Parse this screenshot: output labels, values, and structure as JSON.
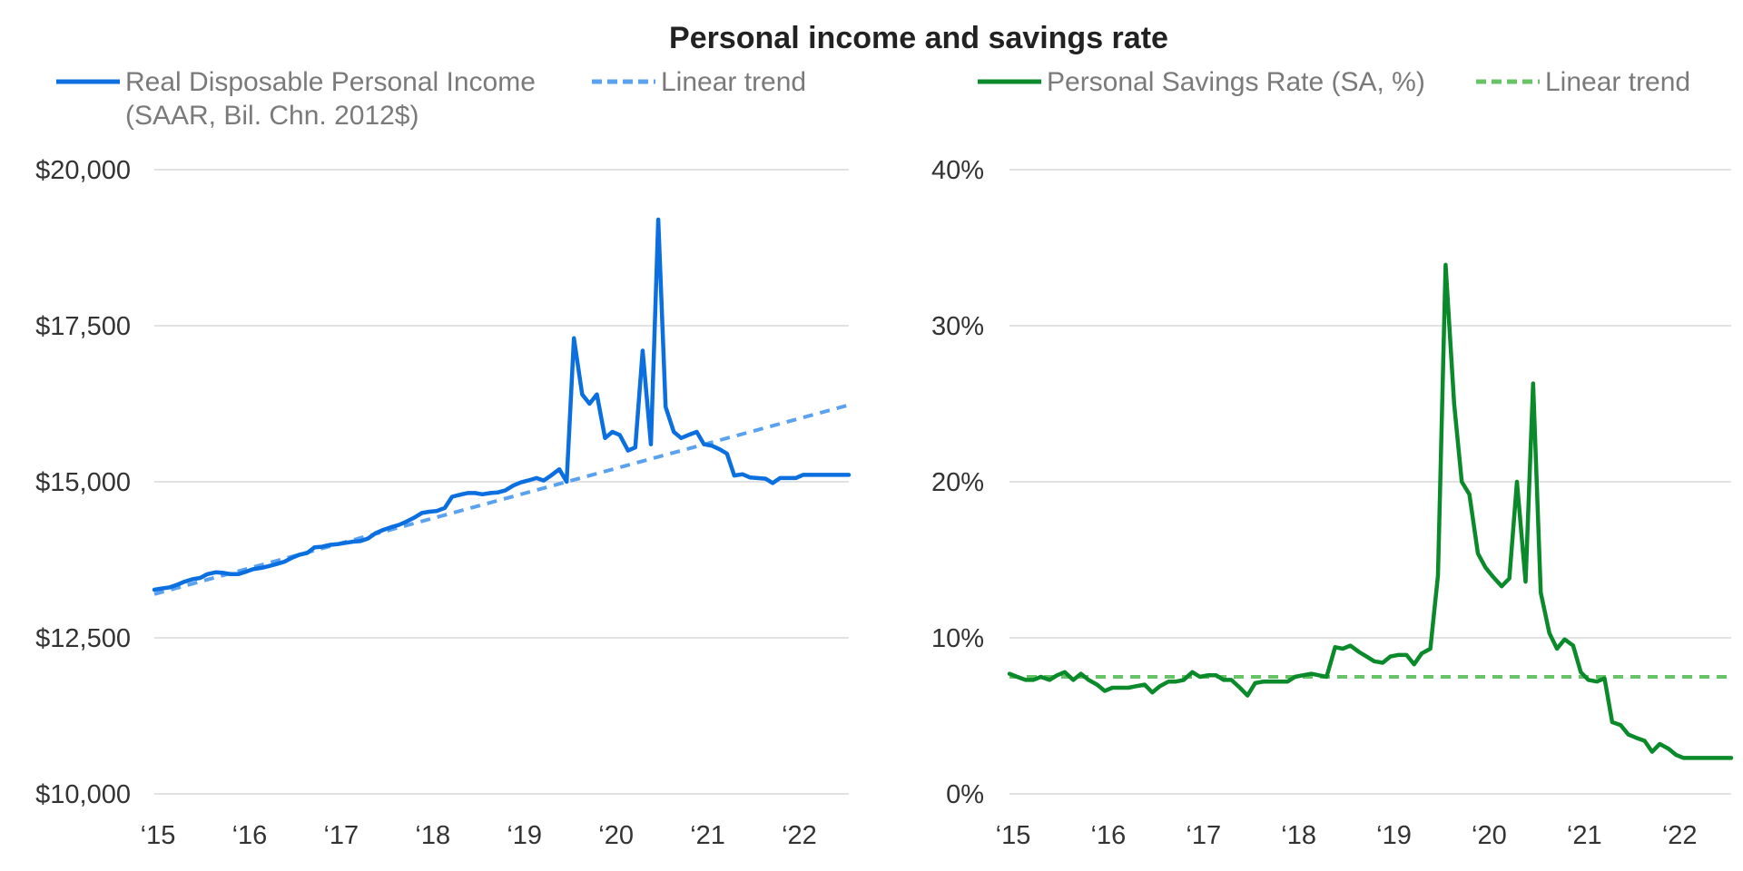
{
  "title": "Personal income and savings rate",
  "colors": {
    "income": "#0b6fe0",
    "income_trend": "#5aa2f0",
    "savings": "#0a8a2a",
    "savings_trend": "#66c466",
    "grid": "#d9d9d9",
    "text": "#333333",
    "legend_text": "#7a7a7a"
  },
  "chart_data": [
    {
      "type": "line",
      "legend": [
        {
          "label_lines": [
            "Real Disposable Personal Income",
            "(SAAR, Bil. Chn. 2012$)"
          ],
          "style": "solid",
          "color": "#0b6fe0"
        },
        {
          "label_lines": [
            "Linear trend"
          ],
          "style": "dashed",
          "color": "#5aa2f0"
        }
      ],
      "x_tick_labels": [
        "‘15",
        "‘16",
        "‘17",
        "‘18",
        "‘19",
        "‘20",
        "‘21",
        "‘22"
      ],
      "xlim": [
        2015.0,
        2022.58
      ],
      "ylim": [
        10000,
        20000
      ],
      "y_ticks": [
        10000,
        12500,
        15000,
        17500,
        20000
      ],
      "y_tick_labels": [
        "$10,000",
        "$12,500",
        "$15,000",
        "$17,500",
        "$20,000"
      ],
      "series": [
        {
          "name": "Real Disposable Personal Income (SAAR, Bil. Chn. 2012$)",
          "style": "solid",
          "x": [
            2015.0,
            2015.08,
            2015.17,
            2015.25,
            2015.33,
            2015.42,
            2015.5,
            2015.58,
            2015.67,
            2015.75,
            2015.83,
            2015.92,
            2016.0,
            2016.08,
            2016.17,
            2016.25,
            2016.33,
            2016.42,
            2016.5,
            2016.58,
            2016.67,
            2016.75,
            2016.83,
            2016.92,
            2017.0,
            2017.08,
            2017.17,
            2017.25,
            2017.33,
            2017.42,
            2017.5,
            2017.58,
            2017.67,
            2017.75,
            2017.83,
            2017.92,
            2018.0,
            2018.08,
            2018.17,
            2018.25,
            2018.33,
            2018.42,
            2018.5,
            2018.58,
            2018.67,
            2018.75,
            2018.83,
            2018.92,
            2019.0,
            2019.08,
            2019.17,
            2019.25,
            2019.33,
            2019.42,
            2019.5,
            2019.58,
            2019.67,
            2019.75,
            2019.83,
            2019.92,
            2020.0,
            2020.08,
            2020.17,
            2020.25,
            2020.33,
            2020.42,
            2020.5,
            2020.58,
            2020.67,
            2020.75,
            2020.83,
            2020.92,
            2021.0,
            2021.08,
            2021.17,
            2021.25,
            2021.33,
            2021.42,
            2021.5,
            2021.58,
            2021.67,
            2021.75,
            2021.83,
            2021.92,
            2022.0,
            2022.08,
            2022.17,
            2022.25,
            2022.33,
            2022.42,
            2022.5,
            2022.58
          ],
          "values": [
            13270,
            13290,
            13310,
            13350,
            13400,
            13440,
            13460,
            13520,
            13550,
            13540,
            13520,
            13520,
            13560,
            13600,
            13620,
            13650,
            13680,
            13720,
            13780,
            13830,
            13860,
            13950,
            13960,
            13990,
            14000,
            14020,
            14040,
            14050,
            14090,
            14180,
            14230,
            14270,
            14310,
            14360,
            14420,
            14500,
            14520,
            14530,
            14580,
            14760,
            14790,
            14820,
            14820,
            14800,
            14820,
            14830,
            14860,
            14940,
            14990,
            15020,
            15060,
            15020,
            15100,
            15200,
            15000,
            17300,
            16400,
            16250,
            16400,
            15700,
            15800,
            15750,
            15500,
            15550,
            17100,
            15600,
            19200,
            16200,
            15800,
            15700,
            15750,
            15800,
            15600,
            15580,
            15520,
            15450,
            15100,
            15120,
            15070,
            15060,
            15050,
            14980,
            15060,
            15060,
            15060,
            15110,
            15110,
            15110,
            15110,
            15110,
            15110,
            15110
          ]
        },
        {
          "name": "Linear trend",
          "style": "dashed",
          "x": [
            2015.0,
            2022.58
          ],
          "values": [
            13200,
            16230
          ]
        }
      ]
    },
    {
      "type": "line",
      "legend": [
        {
          "label_lines": [
            "Personal Savings Rate (SA, %)"
          ],
          "style": "solid",
          "color": "#0a8a2a"
        },
        {
          "label_lines": [
            "Linear trend"
          ],
          "style": "dashed",
          "color": "#66c466"
        }
      ],
      "x_tick_labels": [
        "‘15",
        "‘16",
        "‘17",
        "‘18",
        "‘19",
        "‘20",
        "‘21",
        "‘22"
      ],
      "xlim": [
        2015.0,
        2022.58
      ],
      "ylim": [
        0,
        40
      ],
      "y_ticks": [
        0,
        10,
        20,
        30,
        40
      ],
      "y_tick_labels": [
        "0%",
        "10%",
        "20%",
        "30%",
        "40%"
      ],
      "series": [
        {
          "name": "Personal Savings Rate (SA, %)",
          "style": "solid",
          "x": [
            2015.0,
            2015.08,
            2015.17,
            2015.25,
            2015.33,
            2015.42,
            2015.5,
            2015.58,
            2015.67,
            2015.75,
            2015.83,
            2015.92,
            2016.0,
            2016.08,
            2016.17,
            2016.25,
            2016.33,
            2016.42,
            2016.5,
            2016.58,
            2016.67,
            2016.75,
            2016.83,
            2016.92,
            2017.0,
            2017.08,
            2017.17,
            2017.25,
            2017.33,
            2017.42,
            2017.5,
            2017.58,
            2017.67,
            2017.75,
            2017.83,
            2017.92,
            2018.0,
            2018.08,
            2018.17,
            2018.25,
            2018.33,
            2018.42,
            2018.5,
            2018.58,
            2018.67,
            2018.75,
            2018.83,
            2018.92,
            2019.0,
            2019.08,
            2019.17,
            2019.25,
            2019.33,
            2019.42,
            2019.5,
            2019.58,
            2019.67,
            2019.75,
            2019.83,
            2019.92,
            2020.0,
            2020.08,
            2020.17,
            2020.25,
            2020.33,
            2020.42,
            2020.5,
            2020.58,
            2020.67,
            2020.75,
            2020.83,
            2020.92,
            2021.0,
            2021.08,
            2021.17,
            2021.25,
            2021.33,
            2021.42,
            2021.5,
            2021.58,
            2021.67,
            2021.75,
            2021.83,
            2021.92,
            2022.0,
            2022.08,
            2022.17,
            2022.25,
            2022.33,
            2022.42,
            2022.5,
            2022.58
          ],
          "values": [
            7.7,
            7.5,
            7.3,
            7.3,
            7.5,
            7.3,
            7.6,
            7.8,
            7.3,
            7.7,
            7.3,
            7.0,
            6.6,
            6.8,
            6.8,
            6.8,
            6.9,
            7.0,
            6.5,
            6.9,
            7.2,
            7.2,
            7.3,
            7.8,
            7.5,
            7.6,
            7.6,
            7.3,
            7.3,
            6.8,
            6.3,
            7.1,
            7.2,
            7.2,
            7.2,
            7.2,
            7.5,
            7.6,
            7.7,
            7.6,
            7.5,
            9.4,
            9.3,
            9.5,
            9.1,
            8.8,
            8.5,
            8.4,
            8.8,
            8.9,
            8.9,
            8.3,
            9.0,
            9.3,
            14.0,
            33.9,
            25.0,
            20.0,
            19.2,
            15.4,
            14.5,
            13.9,
            13.3,
            13.8,
            20.0,
            13.6,
            26.3,
            12.9,
            10.3,
            9.3,
            9.9,
            9.5,
            7.8,
            7.3,
            7.2,
            7.4,
            4.6,
            4.4,
            3.8,
            3.6,
            3.4,
            2.7,
            3.2,
            2.9,
            2.5,
            2.3,
            2.3,
            2.3,
            2.3,
            2.3,
            2.3,
            2.3
          ]
        },
        {
          "name": "Linear trend",
          "style": "dashed",
          "x": [
            2015.0,
            2022.58
          ],
          "values": [
            7.5,
            7.5
          ]
        }
      ]
    }
  ]
}
